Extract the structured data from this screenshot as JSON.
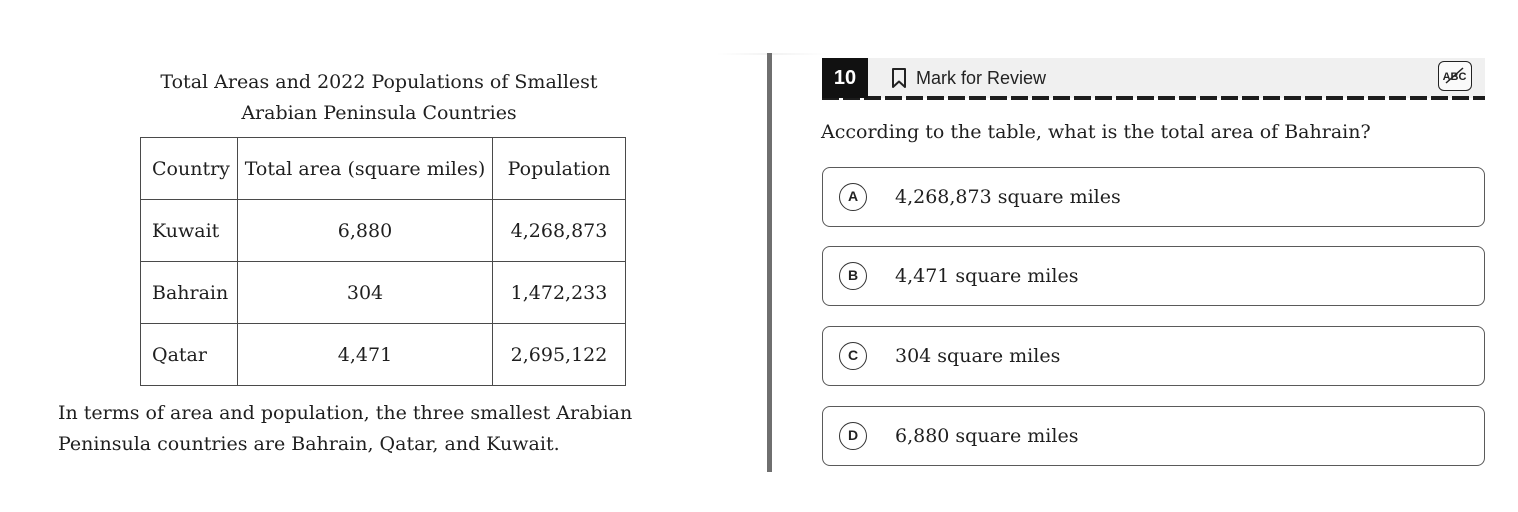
{
  "passage": {
    "table_caption": "Total Areas and 2022 Populations of Smallest Arabian Peninsula Countries",
    "table": {
      "headers": [
        "Country",
        "Total area (square miles)",
        "Population"
      ],
      "rows": [
        [
          "Kuwait",
          "6,880",
          "4,268,873"
        ],
        [
          "Bahrain",
          "304",
          "1,472,233"
        ],
        [
          "Qatar",
          "4,471",
          "2,695,122"
        ]
      ]
    },
    "text": "In terms of area and population, the three smallest Arabian Peninsula countries are Bahrain, Qatar, and Kuwait."
  },
  "question": {
    "number": "10",
    "mark_for_review": "Mark for Review",
    "prompt": "According to the table, what is the total area of Bahrain?",
    "options": [
      {
        "letter": "A",
        "text": "4,268,873 square miles"
      },
      {
        "letter": "B",
        "text": "4,471 square miles"
      },
      {
        "letter": "C",
        "text": "304 square miles"
      },
      {
        "letter": "D",
        "text": "6,880 square miles"
      }
    ]
  },
  "icons": {
    "mark_for_review": "bookmark-icon",
    "answer_eliminator": "abc-strikethrough-icon"
  }
}
